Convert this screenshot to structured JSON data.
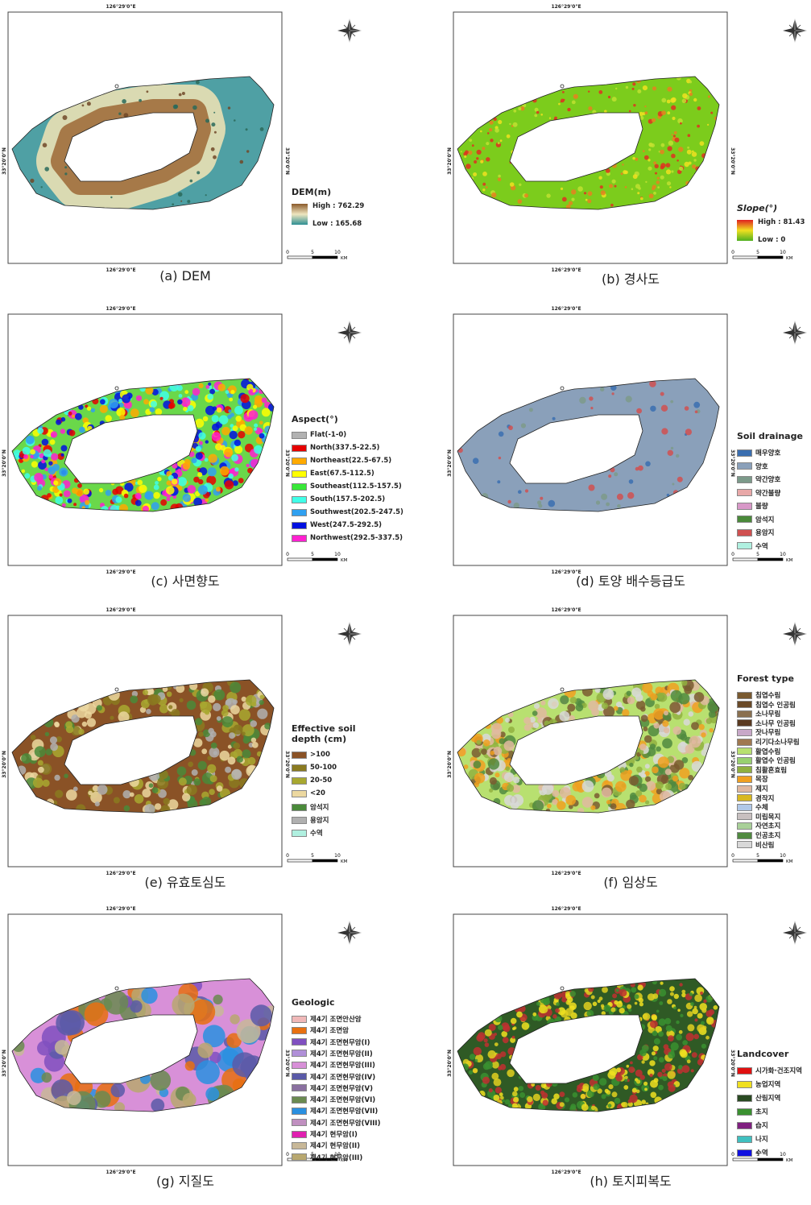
{
  "coords": {
    "lon": "126°29'0\"E",
    "lat": "33°20'0\"N"
  },
  "scale": {
    "ticks": [
      "0",
      "5",
      "10"
    ],
    "unit": "KM"
  },
  "panels": [
    {
      "caption": "(a) DEM",
      "legend": {
        "title": "DEM(m)",
        "ramp": [
          "#8b5a2b",
          "#efe6bf",
          "#2e8f93"
        ],
        "high": "High : 762.29",
        "low": "Low : 165.68"
      }
    },
    {
      "caption": "(b) 경사도",
      "legend": {
        "title": "Slope(°)",
        "ramp": [
          "#e02020",
          "#f0e020",
          "#50b020"
        ],
        "high": "High : 81.43",
        "low": "Low : 0"
      }
    },
    {
      "caption": "(c) 사면향도",
      "legend": {
        "title": "Aspect(°)",
        "items": [
          {
            "label": "Flat(-1-0)",
            "color": "#b2b2b2"
          },
          {
            "label": "North(337.5-22.5)",
            "color": "#e60000"
          },
          {
            "label": "Northeast(22.5-67.5)",
            "color": "#ffaa00"
          },
          {
            "label": "East(67.5-112.5)",
            "color": "#ffff00"
          },
          {
            "label": "Southeast(112.5-157.5)",
            "color": "#38e838"
          },
          {
            "label": "South(157.5-202.5)",
            "color": "#40ffe8"
          },
          {
            "label": "Southwest(202.5-247.5)",
            "color": "#30a0f0"
          },
          {
            "label": "West(247.5-292.5)",
            "color": "#0010e0"
          },
          {
            "label": "Northwest(292.5-337.5)",
            "color": "#ff20d0"
          }
        ]
      }
    },
    {
      "caption": "(d) 토양 배수등급도",
      "legend": {
        "title": "Soil drainage",
        "items": [
          {
            "label": "매우양호",
            "color": "#3a6eb0"
          },
          {
            "label": "양호",
            "color": "#8aa0ba"
          },
          {
            "label": "약간양호",
            "color": "#7c9a8a"
          },
          {
            "label": "약간불량",
            "color": "#e8a8a8"
          },
          {
            "label": "불량",
            "color": "#d898c8"
          },
          {
            "label": "암석지",
            "color": "#4a8a3a"
          },
          {
            "label": "용암지",
            "color": "#d05050"
          },
          {
            "label": "수역",
            "color": "#b0f0e0"
          }
        ]
      }
    },
    {
      "caption": "(e) 유효토심도",
      "legend": {
        "title": "Effective soil depth (cm)",
        "items": [
          {
            "label": ">100",
            "color": "#8a5226"
          },
          {
            "label": "50-100",
            "color": "#8a7a20"
          },
          {
            "label": "20-50",
            "color": "#a8a830"
          },
          {
            "label": "<20",
            "color": "#ecd8a0"
          },
          {
            "label": "암석지",
            "color": "#4a8a3a"
          },
          {
            "label": "용암지",
            "color": "#b0b0b0"
          },
          {
            "label": "수역",
            "color": "#b0f0e0"
          }
        ]
      }
    },
    {
      "caption": "(f) 임상도",
      "legend": {
        "title": "Forest type",
        "items": [
          {
            "label": "침엽수림",
            "color": "#7a5a30"
          },
          {
            "label": "침엽수 인공림",
            "color": "#6a4a28"
          },
          {
            "label": "소나무림",
            "color": "#8a7050"
          },
          {
            "label": "소나무 인공림",
            "color": "#5a3a20"
          },
          {
            "label": "잣나무림",
            "color": "#c8a8c8"
          },
          {
            "label": "리기다소나무림",
            "color": "#a07850"
          },
          {
            "label": "활엽수림",
            "color": "#b8e070"
          },
          {
            "label": "활엽수 인공림",
            "color": "#98d070"
          },
          {
            "label": "침활혼효림",
            "color": "#90b040"
          },
          {
            "label": "목장",
            "color": "#f0a020"
          },
          {
            "label": "제지",
            "color": "#e0b8a0"
          },
          {
            "label": "경작지",
            "color": "#d8b820"
          },
          {
            "label": "수체",
            "color": "#b0c8e8"
          },
          {
            "label": "미립목지",
            "color": "#c8c0c0"
          },
          {
            "label": "자연초지",
            "color": "#a8d098"
          },
          {
            "label": "인공초지",
            "color": "#508a40"
          },
          {
            "label": "비산림",
            "color": "#d8d8d8"
          }
        ]
      }
    },
    {
      "caption": "(g) 지질도",
      "legend": {
        "title": "Geologic",
        "items": [
          {
            "label": "제4기 조면안산암",
            "color": "#f0b8b8"
          },
          {
            "label": "제4기 조면암",
            "color": "#e87010"
          },
          {
            "label": "제4기 조면현무암(I)",
            "color": "#8050c0"
          },
          {
            "label": "제4기 조면현무암(II)",
            "color": "#b090d8"
          },
          {
            "label": "제4기 조면현무암(III)",
            "color": "#d890d8"
          },
          {
            "label": "제4기 조면현무암(IV)",
            "color": "#5a5aa8"
          },
          {
            "label": "제4기 조면현무암(V)",
            "color": "#8a70a0"
          },
          {
            "label": "제4기 조면현무암(VI)",
            "color": "#6a8a50"
          },
          {
            "label": "제4기 조면현무암(VII)",
            "color": "#2a90e0"
          },
          {
            "label": "제4기 조면현무암(VIII)",
            "color": "#c090c0"
          },
          {
            "label": "제4기 현무암(I)",
            "color": "#e020b0"
          },
          {
            "label": "제4기 현무암(II)",
            "color": "#c8b898"
          },
          {
            "label": "제4기 현무암(III)",
            "color": "#b8a870"
          }
        ]
      }
    },
    {
      "caption": "(h) 토지피복도",
      "legend": {
        "title": "Landcover",
        "items": [
          {
            "label": "시가화·건조지역",
            "color": "#e01010"
          },
          {
            "label": "농업지역",
            "color": "#f0e020"
          },
          {
            "label": "산림지역",
            "color": "#2a4a22"
          },
          {
            "label": "초지",
            "color": "#3a9030"
          },
          {
            "label": "습지",
            "color": "#802080"
          },
          {
            "label": "나지",
            "color": "#40c0c0"
          },
          {
            "label": "수역",
            "color": "#1010e0"
          }
        ]
      }
    }
  ]
}
